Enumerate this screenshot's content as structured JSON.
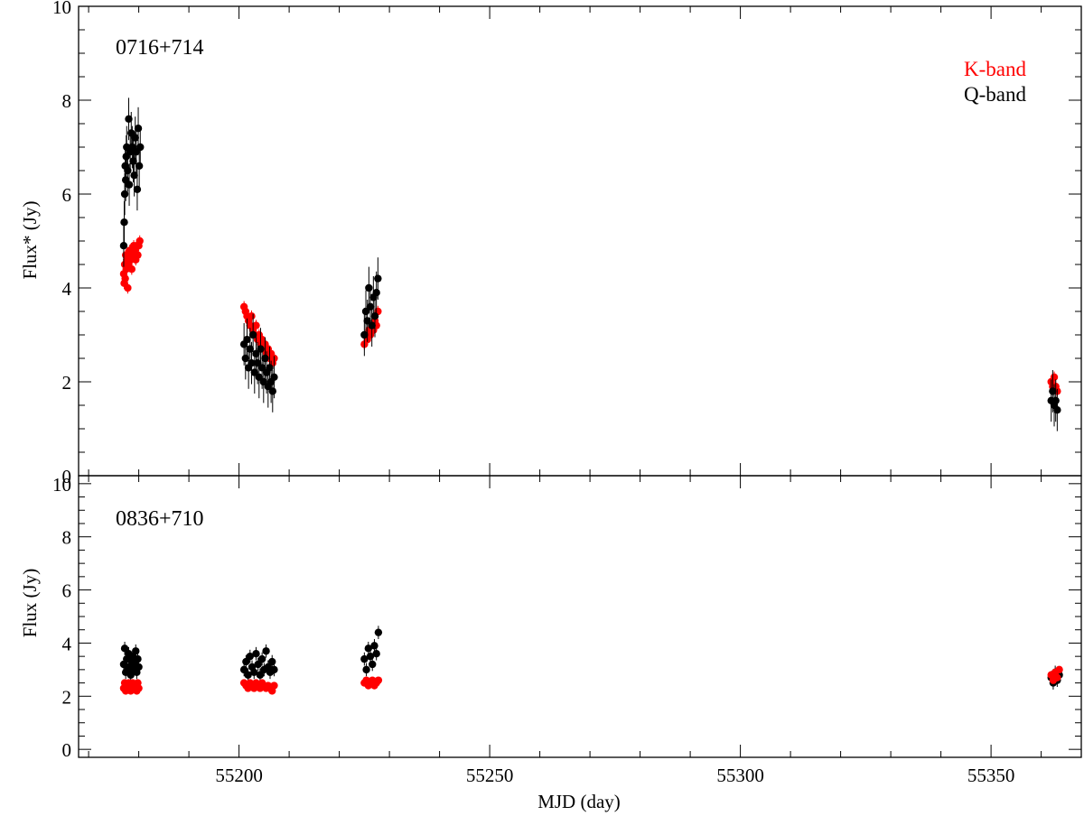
{
  "chart_data": [
    {
      "type": "scatter",
      "panel_label": "0716+714",
      "ylabel": "Flux* (Jy)",
      "xlabel": "",
      "xlim": [
        55168,
        55368
      ],
      "ylim": [
        0,
        10
      ],
      "y_ticks": [
        0,
        2,
        4,
        6,
        8,
        10
      ],
      "legend_position": "top-right",
      "legend": [
        {
          "name": "K-band",
          "color": "#ff0000"
        },
        {
          "name": "Q-band",
          "color": "#000000"
        }
      ],
      "series": [
        {
          "name": "K-band",
          "color": "#ff0000",
          "err": 0.12,
          "points": [
            [
              55177.0,
              4.3
            ],
            [
              55177.1,
              4.1
            ],
            [
              55177.2,
              4.5
            ],
            [
              55177.3,
              4.2
            ],
            [
              55177.4,
              4.7
            ],
            [
              55177.5,
              4.4
            ],
            [
              55177.6,
              4.6
            ],
            [
              55177.8,
              4.0
            ],
            [
              55178.0,
              4.5
            ],
            [
              55178.2,
              4.8
            ],
            [
              55178.4,
              4.6
            ],
            [
              55178.6,
              4.4
            ],
            [
              55178.8,
              4.7
            ],
            [
              55179.0,
              4.9
            ],
            [
              55179.2,
              4.8
            ],
            [
              55179.4,
              4.6
            ],
            [
              55179.6,
              4.9
            ],
            [
              55179.8,
              4.7
            ],
            [
              55180.0,
              4.9
            ],
            [
              55180.2,
              5.0
            ],
            [
              55201.0,
              3.6
            ],
            [
              55201.3,
              3.5
            ],
            [
              55201.6,
              3.4
            ],
            [
              55201.9,
              3.3
            ],
            [
              55202.2,
              3.2
            ],
            [
              55202.5,
              3.4
            ],
            [
              55202.8,
              3.1
            ],
            [
              55203.1,
              3.0
            ],
            [
              55203.4,
              3.2
            ],
            [
              55203.7,
              2.9
            ],
            [
              55204.0,
              3.0
            ],
            [
              55204.3,
              2.8
            ],
            [
              55204.6,
              2.9
            ],
            [
              55204.9,
              2.7
            ],
            [
              55205.2,
              2.8
            ],
            [
              55205.5,
              2.6
            ],
            [
              55205.8,
              2.7
            ],
            [
              55206.1,
              2.5
            ],
            [
              55206.4,
              2.6
            ],
            [
              55206.7,
              2.4
            ],
            [
              55207.0,
              2.5
            ],
            [
              55225.0,
              2.8
            ],
            [
              55225.3,
              3.0
            ],
            [
              55225.6,
              2.9
            ],
            [
              55225.9,
              3.1
            ],
            [
              55226.2,
              3.0
            ],
            [
              55226.5,
              3.2
            ],
            [
              55226.8,
              3.1
            ],
            [
              55227.1,
              3.3
            ],
            [
              55227.4,
              3.2
            ],
            [
              55227.7,
              3.5
            ],
            [
              55362.0,
              2.0
            ],
            [
              55362.3,
              1.9
            ],
            [
              55362.6,
              2.1
            ],
            [
              55362.9,
              1.9
            ],
            [
              55363.2,
              1.8
            ]
          ]
        },
        {
          "name": "Q-band",
          "color": "#000000",
          "err": 0.45,
          "points": [
            [
              55177.0,
              4.9
            ],
            [
              55177.1,
              5.4
            ],
            [
              55177.2,
              6.0
            ],
            [
              55177.3,
              6.6
            ],
            [
              55177.4,
              6.3
            ],
            [
              55177.5,
              6.8
            ],
            [
              55177.6,
              7.0
            ],
            [
              55177.8,
              6.5
            ],
            [
              55178.0,
              7.6
            ],
            [
              55178.1,
              6.2
            ],
            [
              55178.3,
              6.9
            ],
            [
              55178.5,
              7.3
            ],
            [
              55178.7,
              7.0
            ],
            [
              55178.9,
              6.7
            ],
            [
              55179.1,
              6.4
            ],
            [
              55179.3,
              7.2
            ],
            [
              55179.5,
              6.9
            ],
            [
              55179.7,
              6.1
            ],
            [
              55179.9,
              7.4
            ],
            [
              55180.1,
              6.6
            ],
            [
              55180.3,
              7.0
            ],
            [
              55201.0,
              2.8
            ],
            [
              55201.3,
              2.5
            ],
            [
              55201.6,
              2.9
            ],
            [
              55201.9,
              2.3
            ],
            [
              55202.2,
              2.7
            ],
            [
              55202.5,
              2.4
            ],
            [
              55202.8,
              3.0
            ],
            [
              55203.1,
              2.2
            ],
            [
              55203.4,
              2.6
            ],
            [
              55203.7,
              2.4
            ],
            [
              55204.0,
              2.1
            ],
            [
              55204.3,
              2.7
            ],
            [
              55204.6,
              2.3
            ],
            [
              55204.9,
              2.0
            ],
            [
              55205.2,
              2.5
            ],
            [
              55205.5,
              2.2
            ],
            [
              55205.8,
              1.9
            ],
            [
              55206.1,
              2.3
            ],
            [
              55206.4,
              2.0
            ],
            [
              55206.7,
              1.8
            ],
            [
              55207.0,
              2.1
            ],
            [
              55225.0,
              3.0
            ],
            [
              55225.3,
              3.5
            ],
            [
              55225.6,
              3.3
            ],
            [
              55225.9,
              4.0
            ],
            [
              55226.2,
              3.6
            ],
            [
              55226.5,
              3.2
            ],
            [
              55226.8,
              3.8
            ],
            [
              55227.1,
              3.4
            ],
            [
              55227.4,
              3.9
            ],
            [
              55227.7,
              4.2
            ],
            [
              55362.0,
              1.6
            ],
            [
              55362.3,
              1.8
            ],
            [
              55362.6,
              1.5
            ],
            [
              55362.9,
              1.6
            ],
            [
              55363.2,
              1.4
            ]
          ]
        }
      ]
    },
    {
      "type": "scatter",
      "panel_label": "0836+710",
      "ylabel": "Flux (Jy)",
      "xlabel": "MJD (day)",
      "xlim": [
        55168,
        55368
      ],
      "ylim": [
        -0.3,
        10.3
      ],
      "y_ticks": [
        0,
        2,
        4,
        6,
        8,
        10
      ],
      "x_ticks": [
        55200,
        55250,
        55300,
        55350
      ],
      "series": [
        {
          "name": "K-band",
          "color": "#ff0000",
          "err": 0.1,
          "points": [
            [
              55177.0,
              2.3
            ],
            [
              55177.2,
              2.5
            ],
            [
              55177.4,
              2.2
            ],
            [
              55177.6,
              2.4
            ],
            [
              55177.8,
              2.3
            ],
            [
              55178.0,
              2.5
            ],
            [
              55178.2,
              2.4
            ],
            [
              55178.4,
              2.2
            ],
            [
              55178.6,
              2.3
            ],
            [
              55178.8,
              2.5
            ],
            [
              55179.0,
              2.4
            ],
            [
              55179.2,
              2.3
            ],
            [
              55179.4,
              2.4
            ],
            [
              55179.6,
              2.2
            ],
            [
              55179.8,
              2.5
            ],
            [
              55180.0,
              2.3
            ],
            [
              55201.0,
              2.5
            ],
            [
              55201.4,
              2.4
            ],
            [
              55201.8,
              2.3
            ],
            [
              55202.2,
              2.5
            ],
            [
              55202.6,
              2.4
            ],
            [
              55203.0,
              2.3
            ],
            [
              55203.4,
              2.5
            ],
            [
              55203.8,
              2.4
            ],
            [
              55204.2,
              2.3
            ],
            [
              55204.6,
              2.5
            ],
            [
              55205.0,
              2.4
            ],
            [
              55205.4,
              2.3
            ],
            [
              55205.8,
              2.4
            ],
            [
              55206.2,
              2.3
            ],
            [
              55206.6,
              2.2
            ],
            [
              55207.0,
              2.4
            ],
            [
              55225.0,
              2.5
            ],
            [
              55225.4,
              2.6
            ],
            [
              55225.8,
              2.4
            ],
            [
              55226.2,
              2.5
            ],
            [
              55226.6,
              2.6
            ],
            [
              55227.0,
              2.4
            ],
            [
              55227.4,
              2.5
            ],
            [
              55227.8,
              2.6
            ],
            [
              55362.0,
              2.8
            ],
            [
              55362.4,
              2.6
            ],
            [
              55362.8,
              2.9
            ],
            [
              55363.2,
              2.7
            ],
            [
              55363.6,
              3.0
            ]
          ]
        },
        {
          "name": "Q-band",
          "color": "#000000",
          "err": 0.25,
          "points": [
            [
              55177.0,
              3.2
            ],
            [
              55177.2,
              3.8
            ],
            [
              55177.4,
              2.9
            ],
            [
              55177.6,
              3.4
            ],
            [
              55177.8,
              3.0
            ],
            [
              55178.0,
              3.6
            ],
            [
              55178.2,
              3.1
            ],
            [
              55178.4,
              2.8
            ],
            [
              55178.6,
              3.3
            ],
            [
              55178.8,
              3.5
            ],
            [
              55179.0,
              3.0
            ],
            [
              55179.2,
              3.2
            ],
            [
              55179.4,
              3.7
            ],
            [
              55179.6,
              2.9
            ],
            [
              55179.8,
              3.4
            ],
            [
              55180.0,
              3.1
            ],
            [
              55201.0,
              3.0
            ],
            [
              55201.4,
              3.3
            ],
            [
              55201.8,
              2.8
            ],
            [
              55202.2,
              3.5
            ],
            [
              55202.6,
              3.1
            ],
            [
              55203.0,
              2.9
            ],
            [
              55203.4,
              3.6
            ],
            [
              55203.8,
              3.2
            ],
            [
              55204.2,
              2.8
            ],
            [
              55204.6,
              3.4
            ],
            [
              55205.0,
              3.0
            ],
            [
              55205.4,
              3.7
            ],
            [
              55205.8,
              3.1
            ],
            [
              55206.2,
              2.9
            ],
            [
              55206.6,
              3.3
            ],
            [
              55207.0,
              3.0
            ],
            [
              55225.0,
              3.4
            ],
            [
              55225.4,
              3.0
            ],
            [
              55225.8,
              3.8
            ],
            [
              55226.2,
              3.5
            ],
            [
              55226.6,
              3.2
            ],
            [
              55227.0,
              3.9
            ],
            [
              55227.4,
              3.6
            ],
            [
              55227.8,
              4.4
            ],
            [
              55362.0,
              2.7
            ],
            [
              55362.4,
              2.5
            ],
            [
              55362.8,
              2.9
            ],
            [
              55363.2,
              2.6
            ],
            [
              55363.6,
              2.8
            ]
          ]
        }
      ]
    }
  ]
}
